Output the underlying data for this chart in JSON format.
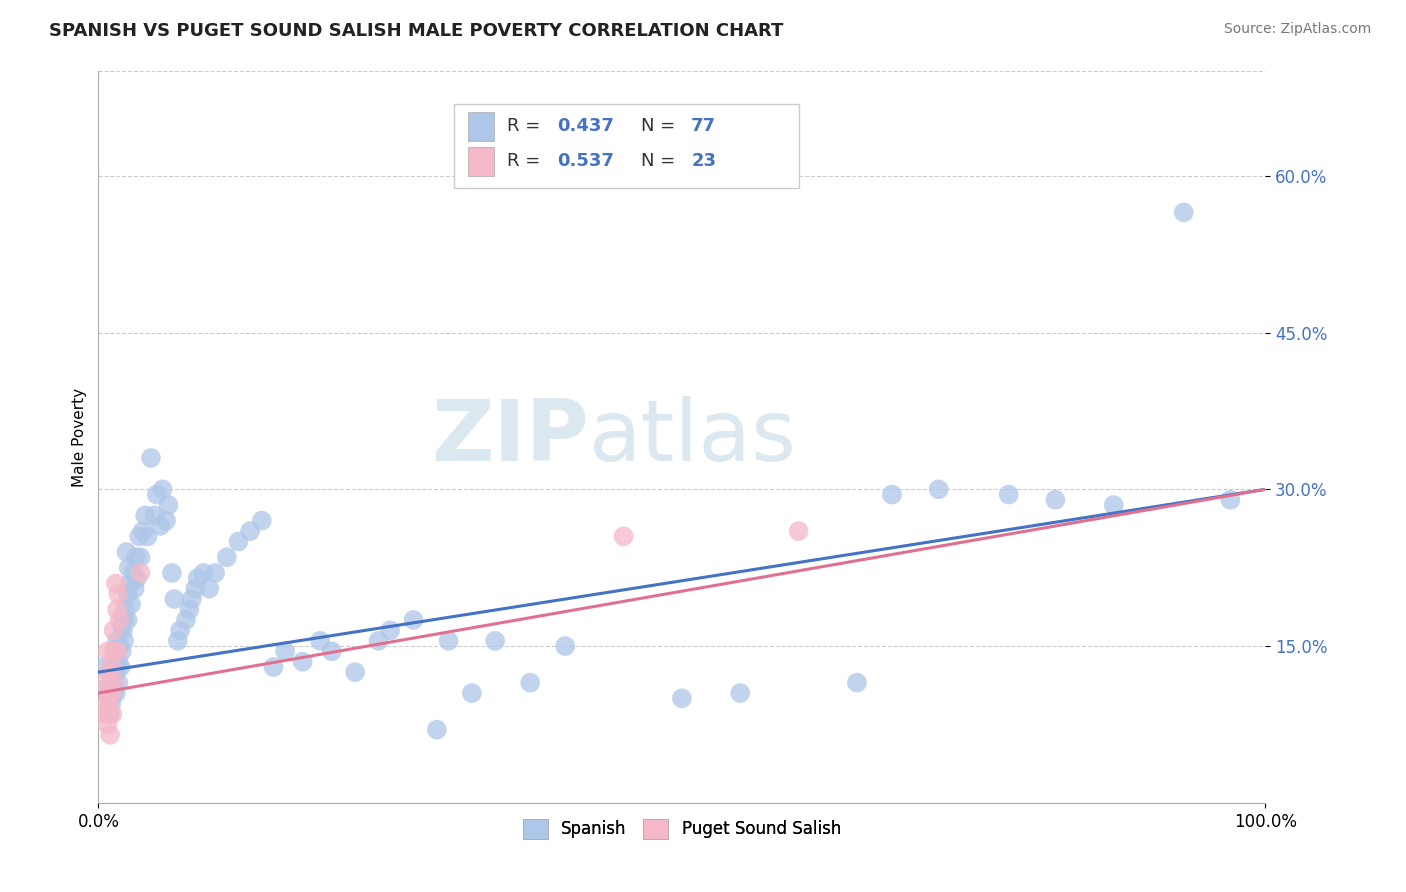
{
  "title": "SPANISH VS PUGET SOUND SALISH MALE POVERTY CORRELATION CHART",
  "source_text": "Source: ZipAtlas.com",
  "ylabel": "Male Poverty",
  "xlim": [
    0.0,
    1.0
  ],
  "ylim": [
    0.0,
    0.7
  ],
  "xtick_labels": [
    "0.0%",
    "100.0%"
  ],
  "ytick_positions": [
    0.15,
    0.3,
    0.45,
    0.6
  ],
  "ytick_labels": [
    "15.0%",
    "30.0%",
    "45.0%",
    "60.0%"
  ],
  "background_color": "#ffffff",
  "grid_color": "#cccccc",
  "watermark_zip": "ZIP",
  "watermark_atlas": "atlas",
  "watermark_color": "#dce8f0",
  "spanish_color": "#aec6e8",
  "salish_color": "#f4b8c8",
  "spanish_line_color": "#4472c4",
  "salish_line_color": "#e07090",
  "spanish_slope": 0.175,
  "spanish_intercept": 0.125,
  "salish_slope": 0.195,
  "salish_intercept": 0.105,
  "spanish_points": [
    [
      0.005,
      0.13
    ],
    [
      0.007,
      0.11
    ],
    [
      0.009,
      0.085
    ],
    [
      0.009,
      0.1
    ],
    [
      0.01,
      0.125
    ],
    [
      0.011,
      0.095
    ],
    [
      0.012,
      0.115
    ],
    [
      0.013,
      0.13
    ],
    [
      0.013,
      0.105
    ],
    [
      0.014,
      0.145
    ],
    [
      0.015,
      0.125
    ],
    [
      0.015,
      0.105
    ],
    [
      0.016,
      0.155
    ],
    [
      0.017,
      0.135
    ],
    [
      0.017,
      0.115
    ],
    [
      0.018,
      0.15
    ],
    [
      0.019,
      0.13
    ],
    [
      0.02,
      0.17
    ],
    [
      0.02,
      0.145
    ],
    [
      0.021,
      0.165
    ],
    [
      0.022,
      0.175
    ],
    [
      0.022,
      0.155
    ],
    [
      0.023,
      0.185
    ],
    [
      0.024,
      0.24
    ],
    [
      0.025,
      0.2
    ],
    [
      0.025,
      0.175
    ],
    [
      0.026,
      0.225
    ],
    [
      0.027,
      0.21
    ],
    [
      0.028,
      0.19
    ],
    [
      0.03,
      0.22
    ],
    [
      0.031,
      0.205
    ],
    [
      0.032,
      0.235
    ],
    [
      0.033,
      0.215
    ],
    [
      0.035,
      0.255
    ],
    [
      0.036,
      0.235
    ],
    [
      0.038,
      0.26
    ],
    [
      0.04,
      0.275
    ],
    [
      0.042,
      0.255
    ],
    [
      0.045,
      0.33
    ],
    [
      0.048,
      0.275
    ],
    [
      0.05,
      0.295
    ],
    [
      0.053,
      0.265
    ],
    [
      0.055,
      0.3
    ],
    [
      0.058,
      0.27
    ],
    [
      0.06,
      0.285
    ],
    [
      0.063,
      0.22
    ],
    [
      0.065,
      0.195
    ],
    [
      0.068,
      0.155
    ],
    [
      0.07,
      0.165
    ],
    [
      0.075,
      0.175
    ],
    [
      0.078,
      0.185
    ],
    [
      0.08,
      0.195
    ],
    [
      0.083,
      0.205
    ],
    [
      0.085,
      0.215
    ],
    [
      0.09,
      0.22
    ],
    [
      0.095,
      0.205
    ],
    [
      0.1,
      0.22
    ],
    [
      0.11,
      0.235
    ],
    [
      0.12,
      0.25
    ],
    [
      0.13,
      0.26
    ],
    [
      0.14,
      0.27
    ],
    [
      0.15,
      0.13
    ],
    [
      0.16,
      0.145
    ],
    [
      0.175,
      0.135
    ],
    [
      0.19,
      0.155
    ],
    [
      0.2,
      0.145
    ],
    [
      0.22,
      0.125
    ],
    [
      0.24,
      0.155
    ],
    [
      0.25,
      0.165
    ],
    [
      0.27,
      0.175
    ],
    [
      0.29,
      0.07
    ],
    [
      0.3,
      0.155
    ],
    [
      0.32,
      0.105
    ],
    [
      0.34,
      0.155
    ],
    [
      0.37,
      0.115
    ],
    [
      0.4,
      0.15
    ],
    [
      0.5,
      0.1
    ],
    [
      0.55,
      0.105
    ],
    [
      0.65,
      0.115
    ],
    [
      0.68,
      0.295
    ],
    [
      0.72,
      0.3
    ],
    [
      0.78,
      0.295
    ],
    [
      0.82,
      0.29
    ],
    [
      0.87,
      0.285
    ],
    [
      0.93,
      0.565
    ],
    [
      0.97,
      0.29
    ]
  ],
  "salish_points": [
    [
      0.005,
      0.085
    ],
    [
      0.006,
      0.115
    ],
    [
      0.007,
      0.095
    ],
    [
      0.008,
      0.075
    ],
    [
      0.008,
      0.145
    ],
    [
      0.009,
      0.125
    ],
    [
      0.009,
      0.1
    ],
    [
      0.01,
      0.085
    ],
    [
      0.01,
      0.065
    ],
    [
      0.011,
      0.13
    ],
    [
      0.011,
      0.105
    ],
    [
      0.012,
      0.085
    ],
    [
      0.013,
      0.145
    ],
    [
      0.013,
      0.165
    ],
    [
      0.014,
      0.115
    ],
    [
      0.015,
      0.21
    ],
    [
      0.016,
      0.185
    ],
    [
      0.016,
      0.145
    ],
    [
      0.017,
      0.2
    ],
    [
      0.018,
      0.175
    ],
    [
      0.036,
      0.22
    ],
    [
      0.45,
      0.255
    ],
    [
      0.6,
      0.26
    ]
  ]
}
